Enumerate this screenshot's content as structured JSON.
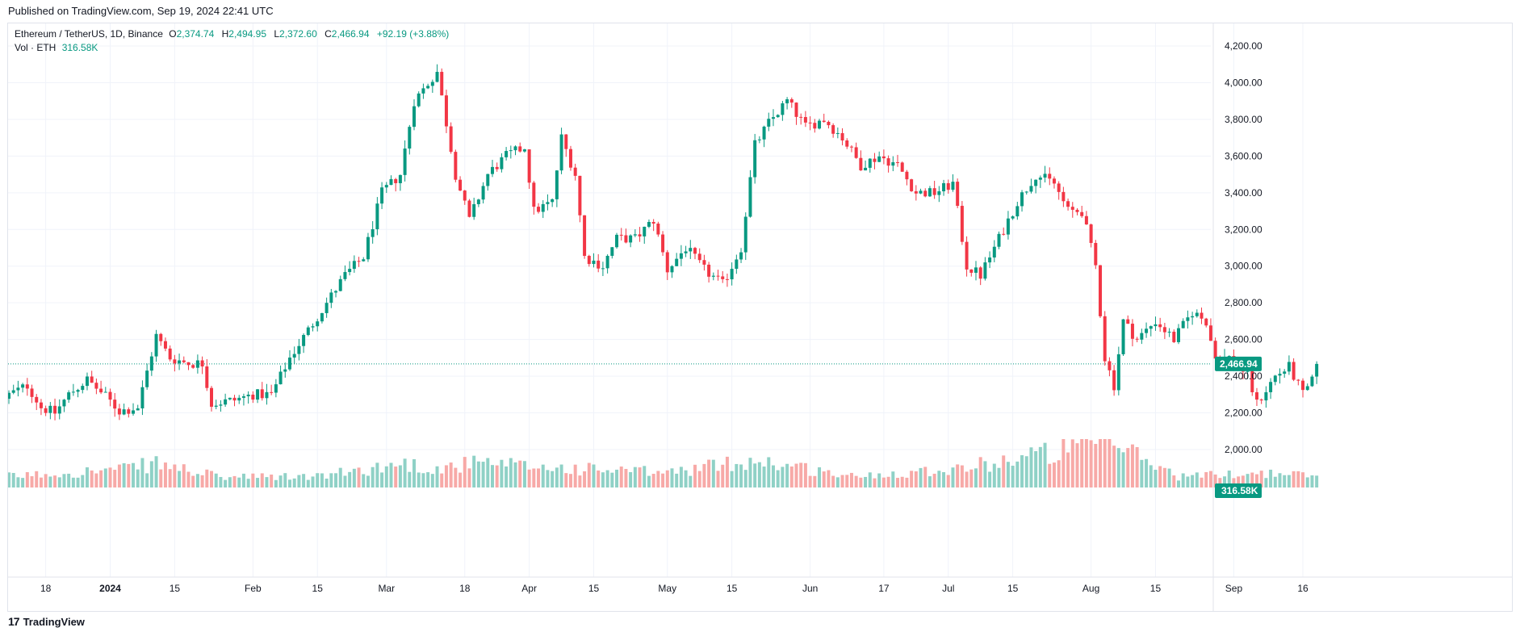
{
  "header": {
    "published": "Published on TradingView.com, Sep 19, 2024 22:41 UTC"
  },
  "legend": {
    "symbol": "Ethereum / TetherUS, 1D, Binance",
    "open_key": "O",
    "open": "2,374.74",
    "high_key": "H",
    "high": "2,494.95",
    "low_key": "L",
    "low": "2,372.60",
    "close_key": "C",
    "close": "2,466.94",
    "change": "+92.19 (+3.88%)",
    "volume_label": "Vol · ETH",
    "volume_value": "316.58K"
  },
  "footer": {
    "brand": "TradingView",
    "logo_glyph": "17"
  },
  "colors": {
    "up": "#089981",
    "down": "#f23645",
    "up_volume": "#8fd1c6",
    "down_volume": "#f7a9a7",
    "grid": "#f0f3fa",
    "price_line": "#089981"
  },
  "chart_data": {
    "type": "candlestick",
    "symbol": "ETHUSDT",
    "interval": "1D",
    "ylim": [
      2000,
      4200
    ],
    "y_ticks": [
      2000,
      2200,
      2400,
      2600,
      2800,
      3000,
      3200,
      3400,
      3600,
      3800,
      4000,
      4200
    ],
    "y_tick_labels": [
      "2,000.00",
      "2,200.00",
      "2,400.00",
      "2,600.00",
      "2,800.00",
      "3,000.00",
      "3,200.00",
      "3,400.00",
      "3,600.00",
      "3,800.00",
      "4,000.00",
      "4,200.00"
    ],
    "x_ticks": [
      {
        "date": "2023-12-18",
        "label": "18"
      },
      {
        "date": "2024-01-01",
        "label": "2024"
      },
      {
        "date": "2024-01-15",
        "label": "15"
      },
      {
        "date": "2024-02-01",
        "label": "Feb"
      },
      {
        "date": "2024-02-15",
        "label": "15"
      },
      {
        "date": "2024-03-01",
        "label": "Mar"
      },
      {
        "date": "2024-03-18",
        "label": "18"
      },
      {
        "date": "2024-04-01",
        "label": "Apr"
      },
      {
        "date": "2024-04-15",
        "label": "15"
      },
      {
        "date": "2024-05-01",
        "label": "May"
      },
      {
        "date": "2024-05-15",
        "label": "15"
      },
      {
        "date": "2024-06-01",
        "label": "Jun"
      },
      {
        "date": "2024-06-17",
        "label": "17"
      },
      {
        "date": "2024-07-01",
        "label": "Jul"
      },
      {
        "date": "2024-07-15",
        "label": "15"
      },
      {
        "date": "2024-08-01",
        "label": "Aug"
      },
      {
        "date": "2024-08-15",
        "label": "15"
      },
      {
        "date": "2024-09-01",
        "label": "Sep"
      },
      {
        "date": "2024-09-16",
        "label": "16"
      }
    ],
    "last_price": 2466.94,
    "last_price_label": "2,466.94",
    "last_volume_label": "316.58K",
    "close_anchors": [
      {
        "date": "2023-12-10",
        "close": 2300
      },
      {
        "date": "2023-12-14",
        "close": 2350
      },
      {
        "date": "2023-12-17",
        "close": 2230
      },
      {
        "date": "2023-12-20",
        "close": 2200
      },
      {
        "date": "2023-12-23",
        "close": 2300
      },
      {
        "date": "2023-12-27",
        "close": 2380
      },
      {
        "date": "2023-12-31",
        "close": 2290
      },
      {
        "date": "2024-01-03",
        "close": 2210
      },
      {
        "date": "2024-01-07",
        "close": 2230
      },
      {
        "date": "2024-01-11",
        "close": 2620
      },
      {
        "date": "2024-01-14",
        "close": 2500
      },
      {
        "date": "2024-01-18",
        "close": 2470
      },
      {
        "date": "2024-01-21",
        "close": 2470
      },
      {
        "date": "2024-01-23",
        "close": 2250
      },
      {
        "date": "2024-01-28",
        "close": 2270
      },
      {
        "date": "2024-02-01",
        "close": 2300
      },
      {
        "date": "2024-02-05",
        "close": 2300
      },
      {
        "date": "2024-02-09",
        "close": 2500
      },
      {
        "date": "2024-02-13",
        "close": 2650
      },
      {
        "date": "2024-02-17",
        "close": 2800
      },
      {
        "date": "2024-02-21",
        "close": 2950
      },
      {
        "date": "2024-02-25",
        "close": 3050
      },
      {
        "date": "2024-02-29",
        "close": 3400
      },
      {
        "date": "2024-03-04",
        "close": 3500
      },
      {
        "date": "2024-03-07",
        "close": 3900
      },
      {
        "date": "2024-03-12",
        "close": 4060
      },
      {
        "date": "2024-03-16",
        "close": 3500
      },
      {
        "date": "2024-03-19",
        "close": 3250
      },
      {
        "date": "2024-03-23",
        "close": 3500
      },
      {
        "date": "2024-03-27",
        "close": 3600
      },
      {
        "date": "2024-03-31",
        "close": 3650
      },
      {
        "date": "2024-04-02",
        "close": 3300
      },
      {
        "date": "2024-04-06",
        "close": 3350
      },
      {
        "date": "2024-04-08",
        "close": 3700
      },
      {
        "date": "2024-04-11",
        "close": 3500
      },
      {
        "date": "2024-04-13",
        "close": 3050
      },
      {
        "date": "2024-04-17",
        "close": 3000
      },
      {
        "date": "2024-04-20",
        "close": 3150
      },
      {
        "date": "2024-04-24",
        "close": 3150
      },
      {
        "date": "2024-04-28",
        "close": 3250
      },
      {
        "date": "2024-05-01",
        "close": 2980
      },
      {
        "date": "2024-05-05",
        "close": 3100
      },
      {
        "date": "2024-05-09",
        "close": 2980
      },
      {
        "date": "2024-05-13",
        "close": 2900
      },
      {
        "date": "2024-05-17",
        "close": 3100
      },
      {
        "date": "2024-05-20",
        "close": 3660
      },
      {
        "date": "2024-05-23",
        "close": 3780
      },
      {
        "date": "2024-05-27",
        "close": 3900
      },
      {
        "date": "2024-05-31",
        "close": 3760
      },
      {
        "date": "2024-06-04",
        "close": 3800
      },
      {
        "date": "2024-06-08",
        "close": 3700
      },
      {
        "date": "2024-06-12",
        "close": 3550
      },
      {
        "date": "2024-06-16",
        "close": 3600
      },
      {
        "date": "2024-06-20",
        "close": 3550
      },
      {
        "date": "2024-06-24",
        "close": 3400
      },
      {
        "date": "2024-06-28",
        "close": 3400
      },
      {
        "date": "2024-07-02",
        "close": 3450
      },
      {
        "date": "2024-07-05",
        "close": 3000
      },
      {
        "date": "2024-07-08",
        "close": 2950
      },
      {
        "date": "2024-07-12",
        "close": 3150
      },
      {
        "date": "2024-07-16",
        "close": 3350
      },
      {
        "date": "2024-07-20",
        "close": 3500
      },
      {
        "date": "2024-07-24",
        "close": 3450
      },
      {
        "date": "2024-07-27",
        "close": 3300
      },
      {
        "date": "2024-07-30",
        "close": 3300
      },
      {
        "date": "2024-08-02",
        "close": 3000
      },
      {
        "date": "2024-08-04",
        "close": 2500
      },
      {
        "date": "2024-08-06",
        "close": 2350
      },
      {
        "date": "2024-08-08",
        "close": 2700
      },
      {
        "date": "2024-08-11",
        "close": 2600
      },
      {
        "date": "2024-08-15",
        "close": 2700
      },
      {
        "date": "2024-08-19",
        "close": 2600
      },
      {
        "date": "2024-08-23",
        "close": 2750
      },
      {
        "date": "2024-08-26",
        "close": 2700
      },
      {
        "date": "2024-08-28",
        "close": 2500
      },
      {
        "date": "2024-09-01",
        "close": 2500
      },
      {
        "date": "2024-09-04",
        "close": 2400
      },
      {
        "date": "2024-09-06",
        "close": 2250
      },
      {
        "date": "2024-09-10",
        "close": 2400
      },
      {
        "date": "2024-09-13",
        "close": 2450
      },
      {
        "date": "2024-09-16",
        "close": 2300
      },
      {
        "date": "2024-09-18",
        "close": 2370
      },
      {
        "date": "2024-09-19",
        "close": 2466.94
      }
    ],
    "volume_anchors_k": [
      {
        "date": "2023-12-10",
        "volume": 300
      },
      {
        "date": "2024-01-04",
        "volume": 500
      },
      {
        "date": "2024-01-11",
        "volume": 650
      },
      {
        "date": "2024-01-25",
        "volume": 280
      },
      {
        "date": "2024-02-15",
        "volume": 300
      },
      {
        "date": "2024-03-05",
        "volume": 650
      },
      {
        "date": "2024-03-12",
        "volume": 500
      },
      {
        "date": "2024-03-19",
        "volume": 650
      },
      {
        "date": "2024-04-13",
        "volume": 500
      },
      {
        "date": "2024-05-01",
        "volume": 400
      },
      {
        "date": "2024-05-20",
        "volume": 750
      },
      {
        "date": "2024-06-10",
        "volume": 300
      },
      {
        "date": "2024-07-05",
        "volume": 550
      },
      {
        "date": "2024-08-05",
        "volume": 1250
      },
      {
        "date": "2024-08-20",
        "volume": 300
      },
      {
        "date": "2024-09-06",
        "volume": 400
      },
      {
        "date": "2024-09-19",
        "volume": 316.58
      }
    ],
    "x_range": [
      "2023-12-10",
      "2024-10-03"
    ]
  }
}
